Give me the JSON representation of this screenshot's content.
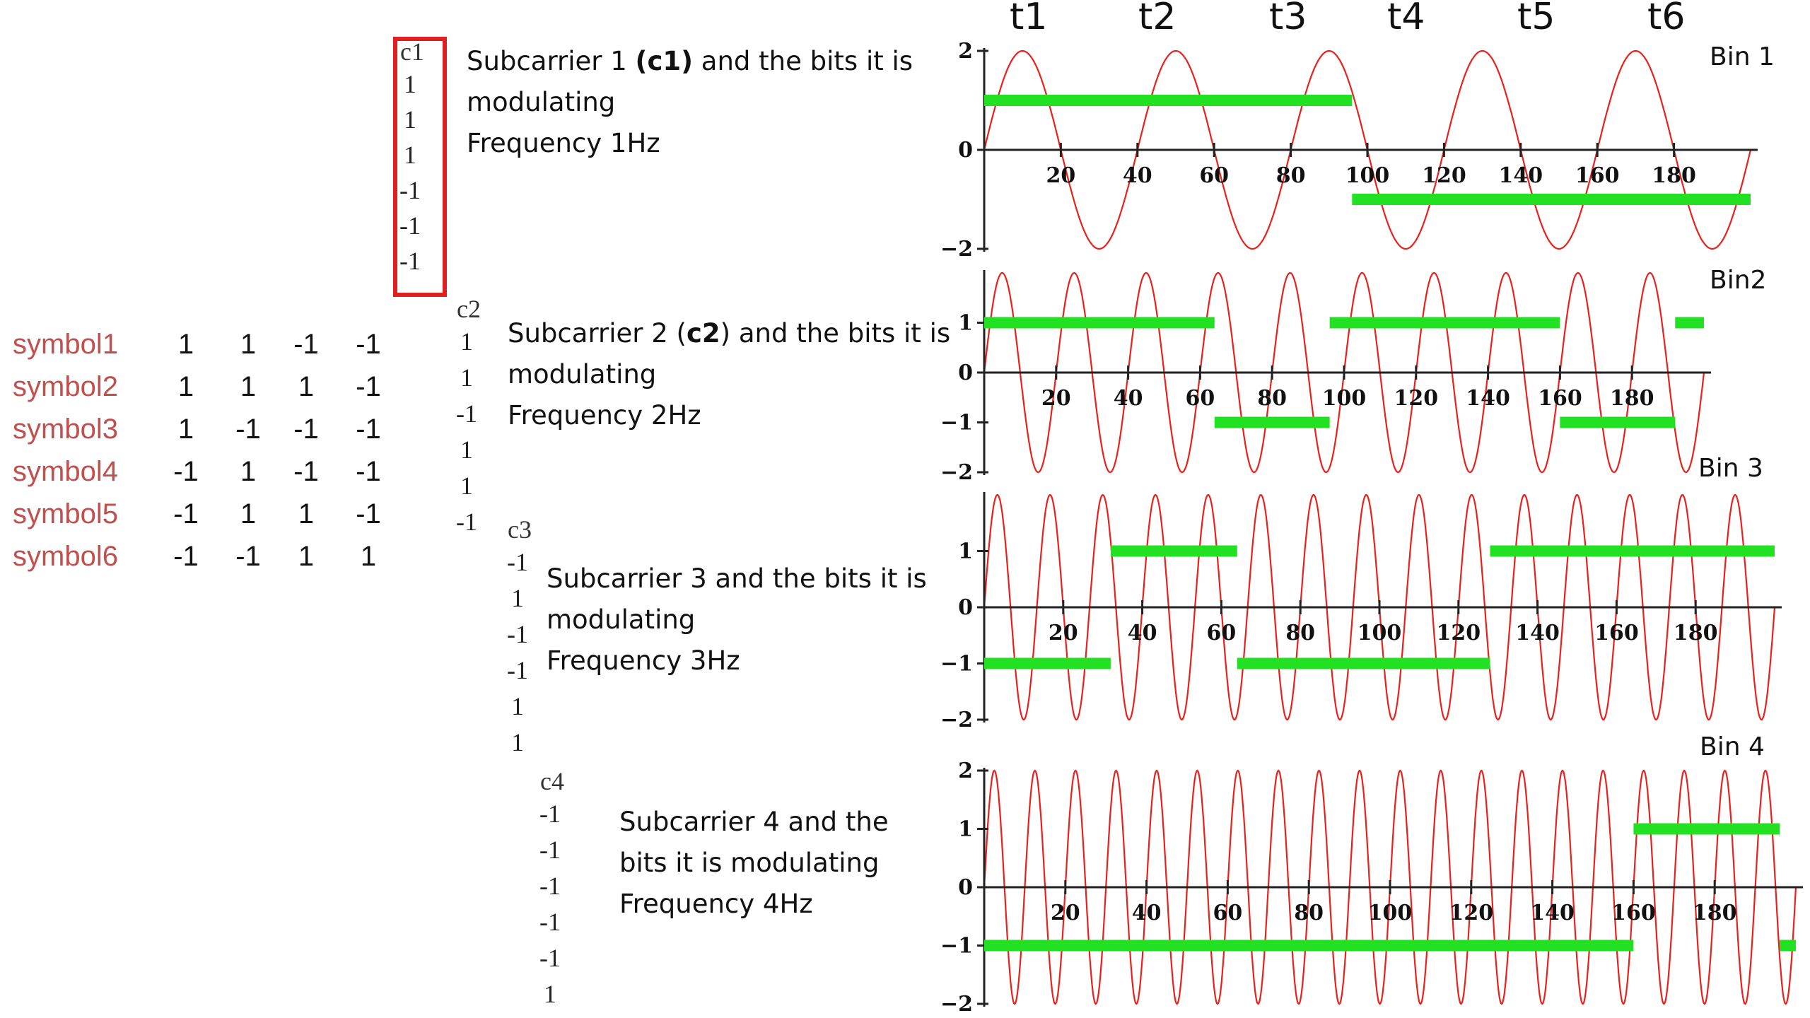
{
  "symbols": {
    "labels": [
      "symbol1",
      "symbol2",
      "symbol3",
      "symbol4",
      "symbol5",
      "symbol6"
    ],
    "rows": [
      [
        "1",
        "1",
        "-1",
        "-1"
      ],
      [
        "1",
        "1",
        "1",
        "-1"
      ],
      [
        "1",
        "-1",
        "-1",
        "-1"
      ],
      [
        "-1",
        "1",
        "-1",
        "-1"
      ],
      [
        "-1",
        "1",
        "1",
        "-1"
      ],
      [
        "-1",
        "-1",
        "1",
        "1"
      ]
    ]
  },
  "columns": [
    {
      "head": "c1",
      "values": [
        "1",
        "1",
        "1",
        "-1",
        "-1",
        "-1"
      ]
    },
    {
      "head": "c2",
      "values": [
        "1",
        "1",
        "-1",
        "1",
        "1",
        "-1"
      ]
    },
    {
      "head": "c3",
      "values": [
        "-1",
        "1",
        "-1",
        "-1",
        "1",
        "1"
      ]
    },
    {
      "head": "c4",
      "values": [
        "-1",
        "-1",
        "-1",
        "-1",
        "-1",
        "1"
      ]
    }
  ],
  "descriptions": [
    {
      "pre": "Subcarrier 1 ",
      "bold": "(c1)",
      "post": " and the bits it is",
      "line2": "modulating",
      "line3": "Frequency 1Hz"
    },
    {
      "pre": "Subcarrier 2 (",
      "bold": "c2",
      "post": ") and the bits it is",
      "line2": "modulating",
      "line3": "Frequency 2Hz"
    },
    {
      "pre": "Subcarrier 3 and the bits it is",
      "bold": "",
      "post": "",
      "line2": "modulating",
      "line3": "Frequency 3Hz"
    },
    {
      "pre": "Subcarrier 4 and the",
      "bold": "",
      "post": "",
      "line2": "bits it is modulating",
      "line3": "Frequency 4Hz"
    }
  ],
  "time_labels": [
    "t1",
    "t2",
    "t3",
    "t4",
    "t5",
    "t6"
  ],
  "colors": {
    "wave": "#e8211d",
    "bits": "#22e022",
    "axis": "#222222",
    "symbol_label": "#c0504d",
    "highlight_box": "#e02020"
  },
  "chart_data": [
    {
      "type": "line",
      "title": "Bin 1",
      "frequency": "1Hz",
      "xlim": [
        0,
        200
      ],
      "ylim": [
        -2,
        2
      ],
      "xticks": [
        20,
        40,
        60,
        80,
        100,
        120,
        140,
        160,
        180
      ],
      "yticks": [
        -2,
        0,
        2
      ],
      "wave_cycles": 5,
      "bits": [
        1,
        1,
        1,
        -1,
        -1,
        -1
      ],
      "bit_segments": [
        {
          "x0": 0,
          "x1": 96,
          "y": 1
        },
        {
          "x0": 96,
          "x1": 200,
          "y": -1
        }
      ]
    },
    {
      "type": "line",
      "title": "Bin2",
      "frequency": "2Hz",
      "xlim": [
        0,
        200
      ],
      "ylim": [
        -2,
        2
      ],
      "xticks": [
        20,
        40,
        60,
        80,
        100,
        120,
        140,
        160,
        180
      ],
      "yticks": [
        -2,
        -1,
        0,
        1
      ],
      "wave_cycles": 10,
      "bits": [
        1,
        1,
        -1,
        1,
        1,
        -1
      ],
      "bit_segments": [
        {
          "x0": 0,
          "x1": 64,
          "y": 1
        },
        {
          "x0": 64,
          "x1": 96,
          "y": -1
        },
        {
          "x0": 96,
          "x1": 160,
          "y": 1
        },
        {
          "x0": 160,
          "x1": 192,
          "y": -1
        },
        {
          "x0": 192,
          "x1": 200,
          "y": 1
        }
      ]
    },
    {
      "type": "line",
      "title": "Bin 3",
      "frequency": "3Hz",
      "xlim": [
        0,
        200
      ],
      "ylim": [
        -2,
        2
      ],
      "xticks": [
        20,
        40,
        60,
        80,
        100,
        120,
        140,
        160,
        180
      ],
      "yticks": [
        -2,
        -1,
        0,
        1
      ],
      "wave_cycles": 15,
      "bits": [
        -1,
        1,
        -1,
        -1,
        1,
        1
      ],
      "bit_segments": [
        {
          "x0": 0,
          "x1": 32,
          "y": -1
        },
        {
          "x0": 32,
          "x1": 64,
          "y": 1
        },
        {
          "x0": 64,
          "x1": 128,
          "y": -1
        },
        {
          "x0": 128,
          "x1": 200,
          "y": 1
        }
      ]
    },
    {
      "type": "line",
      "title": "Bin 4",
      "frequency": "4Hz",
      "xlim": [
        0,
        200
      ],
      "ylim": [
        -2,
        2
      ],
      "xticks": [
        20,
        40,
        60,
        80,
        100,
        120,
        140,
        160,
        180
      ],
      "yticks": [
        -2,
        -1,
        0,
        1,
        2
      ],
      "wave_cycles": 20,
      "bits": [
        -1,
        -1,
        -1,
        -1,
        -1,
        1
      ],
      "bit_segments": [
        {
          "x0": 0,
          "x1": 160,
          "y": -1
        },
        {
          "x0": 160,
          "x1": 196,
          "y": 1
        },
        {
          "x0": 196,
          "x1": 200,
          "y": -1
        }
      ]
    }
  ]
}
